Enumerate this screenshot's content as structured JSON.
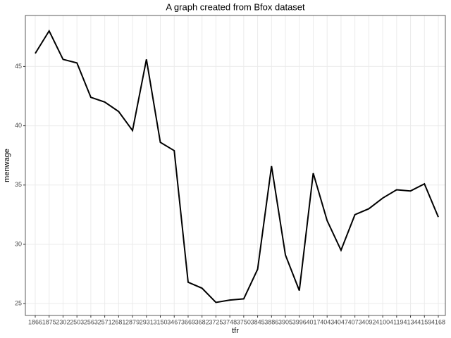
{
  "chart_data": {
    "type": "line",
    "title": "A graph created from Bfox dataset",
    "x_label": "tfr",
    "y_label": "menwage",
    "categories": [
      "1866",
      "1875",
      "2302",
      "2503",
      "2563",
      "2571",
      "2681",
      "2879",
      "2931",
      "3150",
      "3467",
      "3669",
      "3682",
      "3725",
      "3748",
      "3750",
      "3845",
      "3886",
      "3905",
      "3996",
      "4017",
      "4043",
      "4047",
      "4073",
      "4092",
      "4100",
      "4119",
      "4134",
      "4159",
      "4168"
    ],
    "series": [
      {
        "name": "menwage",
        "color": "#000000",
        "values": [
          46.1,
          48.0,
          45.6,
          45.3,
          42.4,
          42.0,
          41.2,
          39.6,
          45.6,
          38.6,
          37.9,
          26.8,
          26.3,
          25.1,
          25.3,
          25.4,
          27.9,
          36.6,
          29.1,
          26.1,
          36.0,
          32.0,
          29.5,
          32.5,
          33.0,
          33.9,
          34.6,
          34.5,
          35.1,
          32.3
        ]
      }
    ],
    "ylim": [
      24,
      49.3
    ],
    "yticks": [
      25,
      30,
      35,
      40,
      45
    ],
    "grid": true
  }
}
